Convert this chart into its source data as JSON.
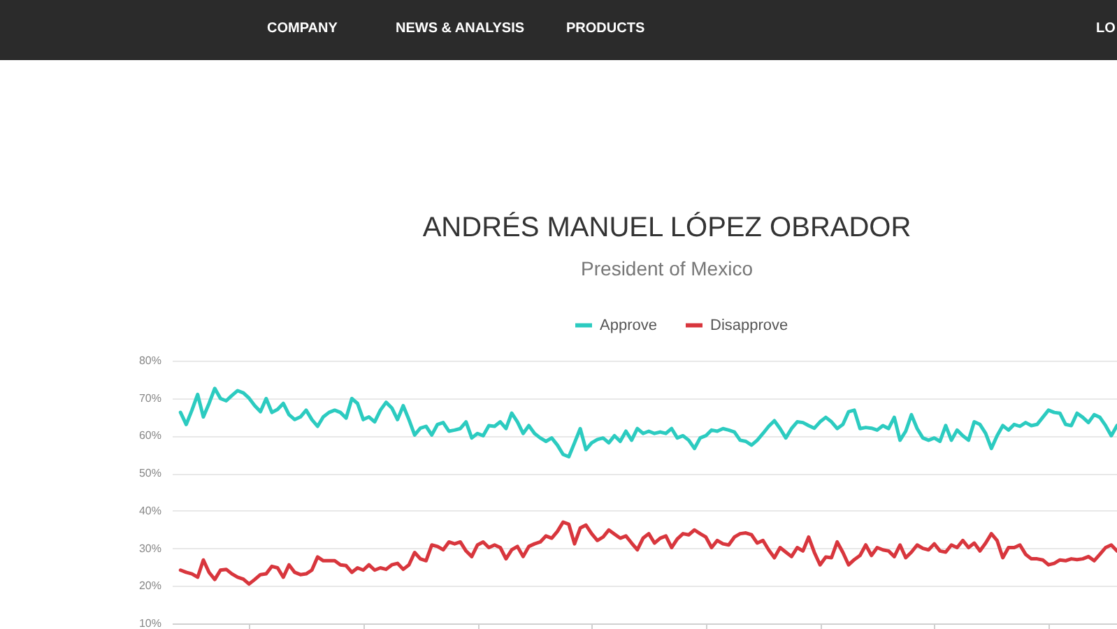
{
  "chart_data": {
    "type": "line",
    "title": "ANDRÉS MANUEL LÓPEZ OBRADOR",
    "subtitle": "President of Mexico",
    "annotations": [
      "COMPANY",
      "NEWS & ANALYSIS",
      "PRODUCTS",
      "LO"
    ],
    "categories": [
      null,
      null,
      null,
      null,
      null,
      null,
      null,
      null,
      null,
      null,
      null,
      null,
      null,
      null,
      null,
      null,
      null,
      null,
      null,
      null,
      null,
      null,
      null,
      null,
      null,
      null,
      null,
      null,
      null,
      null,
      null,
      null,
      null,
      null,
      null,
      null,
      null,
      null,
      null,
      null,
      null,
      null,
      null,
      null,
      null,
      null,
      null,
      null,
      null,
      null,
      null,
      null,
      null,
      null,
      null,
      null,
      null,
      null,
      null,
      null,
      null,
      null,
      null,
      null,
      null,
      null,
      null,
      null,
      null,
      null,
      null,
      null,
      null,
      null,
      null,
      null,
      null,
      null,
      null,
      null,
      null,
      null,
      null,
      null,
      null,
      null,
      null,
      null,
      null,
      null,
      null,
      null,
      null,
      null,
      null,
      null,
      null,
      null,
      null,
      null,
      null,
      null,
      null,
      null,
      null,
      null,
      null,
      null,
      null,
      null,
      null,
      null,
      null,
      null,
      null,
      null,
      null,
      null,
      null,
      null,
      null,
      null,
      null,
      null,
      null,
      null,
      null,
      null,
      null,
      null,
      null,
      null,
      null,
      null,
      null,
      null,
      null,
      null,
      null,
      null,
      null,
      null,
      null,
      null,
      null,
      null,
      null,
      null,
      null,
      null,
      null,
      null,
      null,
      null,
      null,
      null,
      null,
      null,
      null,
      null,
      null,
      null,
      null,
      null,
      null
    ],
    "series": [
      {
        "name": "Approve",
        "color": "#2ccbc0",
        "values": [
          66.2,
          63,
          66.8,
          71,
          65,
          68.6,
          72.6,
          69.9,
          69.3,
          70.7,
          72,
          71.4,
          70,
          68,
          66.4,
          69.9,
          66.2,
          67,
          68.6,
          65.6,
          64.3,
          65,
          66.8,
          64.3,
          62.5,
          65,
          66.2,
          66.8,
          66.2,
          64.7,
          69.9,
          68.6,
          64.3,
          65,
          63.7,
          66.8,
          68.9,
          67.4,
          64.3,
          68,
          64.3,
          60.2,
          62,
          62.5,
          60.2,
          63,
          63.5,
          61.2,
          61.5,
          61.9,
          63.7,
          59.4,
          60.6,
          60,
          62.7,
          62.5,
          63.7,
          61.9,
          66,
          63.7,
          60.6,
          62.7,
          60.6,
          59.4,
          58.5,
          59.4,
          57.5,
          55,
          54.4,
          58.1,
          61.9,
          56.3,
          58.1,
          59,
          59.4,
          58.1,
          60,
          58.5,
          61.2,
          58.8,
          61.9,
          60.6,
          61.2,
          60.6,
          61,
          60.6,
          61.9,
          59.4,
          60,
          58.8,
          56.6,
          59.4,
          60,
          61.5,
          61.2,
          61.9,
          61.5,
          61,
          58.8,
          58.5,
          57.5,
          58.8,
          60.6,
          62.5,
          64,
          61.9,
          59.4,
          61.9,
          63.7,
          63.5,
          62.7,
          62,
          63.7,
          64.9,
          63.7,
          61.9,
          63,
          66.4,
          66.8,
          61.9,
          62.2,
          62,
          61.5,
          62.7,
          61.9,
          64.9,
          58.8,
          61.2,
          65.6,
          61.9,
          59.4,
          58.8,
          59.4,
          58.5,
          62.7,
          58.8,
          61.5,
          60,
          58.8,
          63.7,
          63,
          60.6,
          56.6,
          60,
          62.7,
          61.5,
          63,
          62.5,
          63.5,
          62.7,
          63,
          64.9,
          66.8,
          66.2,
          66,
          63,
          62.7,
          66,
          64.9,
          63.5,
          65.6,
          64.9,
          62.7,
          60,
          62.7
        ]
      },
      {
        "name": "Disapprove",
        "color": "#d8363d",
        "values": [
          24.2,
          23.6,
          23.2,
          22.3,
          26.9,
          23.6,
          21.7,
          24.2,
          24.4,
          23.2,
          22.3,
          21.8,
          20.5,
          21.7,
          23,
          23.2,
          25.2,
          24.8,
          22.3,
          25.6,
          23.6,
          23,
          23.2,
          24.2,
          27.7,
          26.7,
          26.7,
          26.7,
          25.6,
          25.4,
          23.6,
          24.8,
          24.2,
          25.6,
          24.2,
          24.8,
          24.4,
          25.6,
          26,
          24.4,
          25.6,
          28.9,
          27.2,
          26.7,
          30.9,
          30.5,
          29.6,
          31.7,
          31.2,
          31.7,
          29.3,
          27.8,
          30.9,
          31.7,
          30.2,
          30.9,
          30.2,
          27.2,
          29.6,
          30.5,
          27.8,
          30.5,
          31.2,
          31.7,
          33.3,
          32.7,
          34.5,
          37,
          36.4,
          31.2,
          35.4,
          36.2,
          33.9,
          32.1,
          33,
          34.9,
          33.8,
          32.7,
          33.3,
          31.4,
          29.6,
          32.7,
          33.9,
          31.4,
          32.7,
          33.3,
          30.2,
          32.5,
          33.9,
          33.6,
          34.9,
          33.9,
          33,
          30.2,
          32.1,
          31.2,
          30.9,
          33,
          33.9,
          34.1,
          33.6,
          31.4,
          32.1,
          29.6,
          27.5,
          30.2,
          29,
          27.8,
          30.2,
          29.3,
          33,
          28.9,
          25.6,
          27.7,
          27.5,
          31.7,
          28.9,
          25.6,
          27,
          28.1,
          30.9,
          28.1,
          30.2,
          29.6,
          29.3,
          27.8,
          30.9,
          27.5,
          29,
          30.9,
          30,
          29.6,
          31.2,
          29.3,
          29,
          30.9,
          30.2,
          32.1,
          30.2,
          31.4,
          29.3,
          31.4,
          33.9,
          32.1,
          27.5,
          30.2,
          30.2,
          30.9,
          28.4,
          27.2,
          27.2,
          26.9,
          25.6,
          26,
          26.9,
          26.7,
          27.2,
          27,
          27.2,
          27.8,
          26.7,
          28.4,
          30.2,
          30.9,
          29.3
        ]
      }
    ],
    "ylim": [
      10,
      80
    ],
    "yticks": [
      {
        "value": 10,
        "label": "10%"
      },
      {
        "value": 20,
        "label": "20%"
      },
      {
        "value": 30,
        "label": "30%"
      },
      {
        "value": 40,
        "label": "40%"
      },
      {
        "value": 50,
        "label": "50%"
      },
      {
        "value": 60,
        "label": "60%"
      },
      {
        "value": 70,
        "label": "70%"
      },
      {
        "value": 80,
        "label": "80%"
      }
    ],
    "grid": "y",
    "legend": "top",
    "tick_labels": "y",
    "line_style": "solid"
  }
}
